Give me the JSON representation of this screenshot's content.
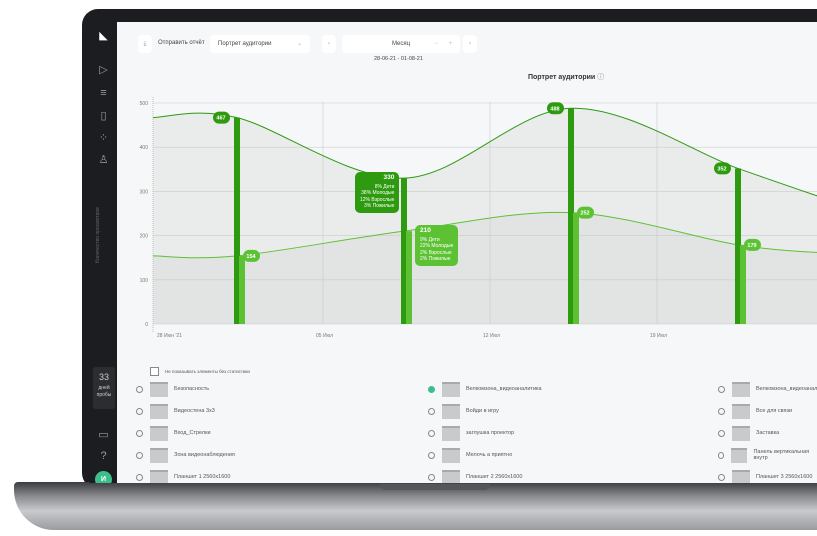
{
  "sidebar": {
    "items": [
      "logo-icon",
      "play-icon",
      "filter-icon",
      "document-icon",
      "loading-icon",
      "user-icon"
    ],
    "trial_days": "33",
    "trial_text": "дней пробы",
    "bottom": [
      "monitor-icon",
      "help-icon"
    ],
    "avatar": "И"
  },
  "toolbar": {
    "send_report": "Отправить отчёт",
    "report_select": "Портрет аудитории",
    "period": "Месяц",
    "date_range": "28-06-21 - 01-08-21"
  },
  "chart_data": {
    "type": "line",
    "title": "Портрет аудитории",
    "ylabel": "Количество просмотров",
    "ylim": [
      0,
      500
    ],
    "yticks": [
      0,
      100,
      200,
      300,
      400,
      500
    ],
    "xticks": [
      "28 Июн '21",
      "05 Июл",
      "12 Июл",
      "19 Июл"
    ],
    "x": [
      "28 Июн",
      "01 Июл",
      "08 Июл",
      "15 Июл",
      "22 Июл",
      "26 Июл"
    ],
    "series": [
      {
        "color": "#2e9a10",
        "values": [
          467,
          467,
          330,
          488,
          352,
          280
        ]
      },
      {
        "color": "#5cc234",
        "values": [
          154,
          154,
          210,
          252,
          179,
          160
        ]
      }
    ],
    "bar_labels": [
      [
        467,
        154
      ],
      [
        330,
        210
      ],
      [
        488,
        252
      ],
      [
        352,
        179
      ]
    ],
    "tooltips": [
      {
        "value": "330",
        "lines": [
          "8% Дети",
          "38% Молодые",
          "12% Взрослые",
          "3% Пожилые"
        ]
      },
      {
        "value": "210",
        "lines": [
          "9% Дети",
          "22% Молодые",
          "2% Взрослые",
          "2% Пожилые"
        ]
      }
    ]
  },
  "filter": {
    "hide_empty": "Не показывать элементы без статистики"
  },
  "list": [
    [
      "Безопасность",
      "Видеостена 3x3",
      "Вход_Стрелки",
      "Зона видеонаблюдения",
      "Планшет 1 2560x1600"
    ],
    [
      "Велкомзона_видеоаналитика",
      "Войди в игру",
      "заглушка проектор",
      "Мелочь а приятно",
      "Планшет 2 2560x1600"
    ],
    [
      "Велкомзона_видеоаналитика",
      "Все для связи",
      "Заставка",
      "Панель вертикальная внутр",
      "Планшет 3 2560x1600"
    ]
  ]
}
